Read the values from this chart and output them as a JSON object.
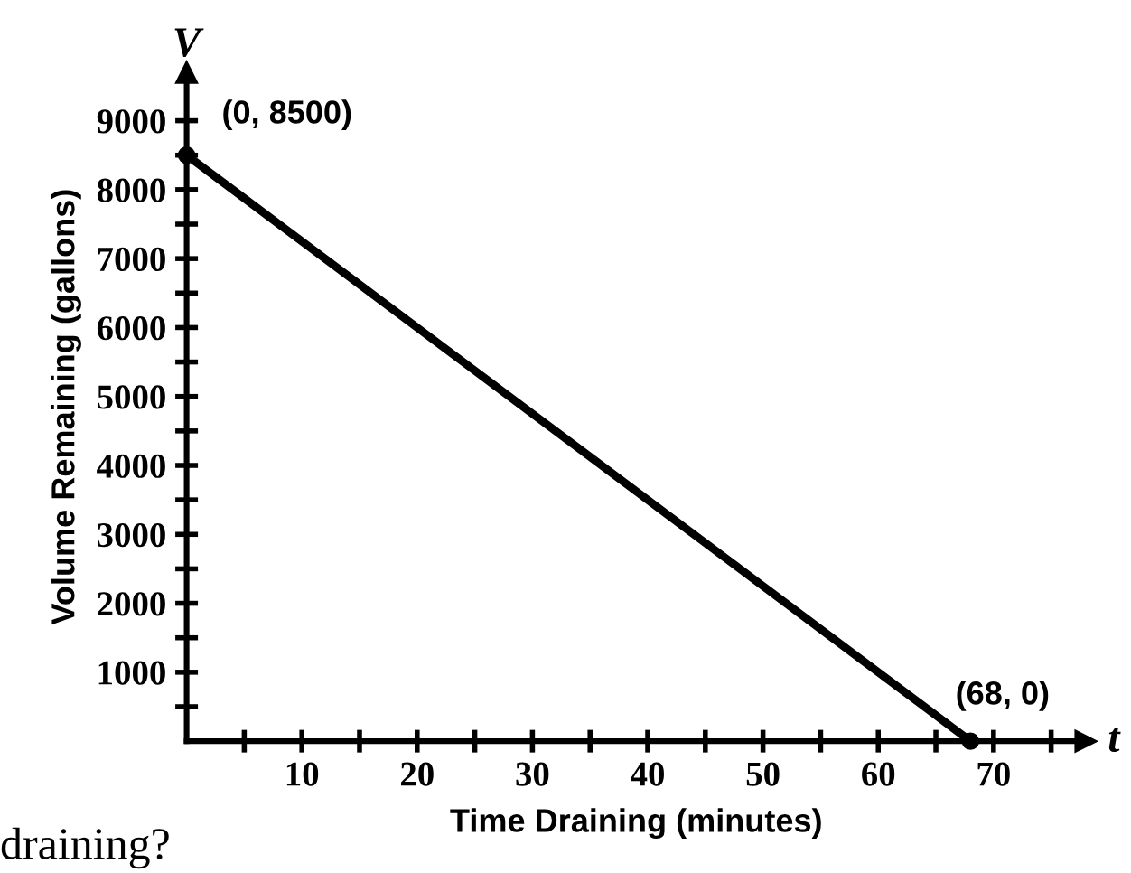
{
  "chart_data": {
    "type": "line",
    "xlabel": "Time Draining (minutes)",
    "ylabel": "Volume Remaining (gallons)",
    "x": [
      0,
      68
    ],
    "series": [
      {
        "color": "#000000",
        "values": [
          8500,
          0
        ]
      }
    ],
    "marker": "circle",
    "line_style": "solid",
    "grid": false,
    "xlim": [
      0,
      78
    ],
    "ylim": [
      0,
      9700
    ],
    "xticks": [
      {
        "value": 5,
        "label": null
      },
      10,
      {
        "value": 15,
        "label": null
      },
      20,
      {
        "value": 25,
        "label": null
      },
      30,
      {
        "value": 35,
        "label": null
      },
      40,
      {
        "value": 45,
        "label": null
      },
      50,
      {
        "value": 55,
        "label": null
      },
      60,
      {
        "value": 65,
        "label": null
      },
      70,
      {
        "value": 75,
        "label": null
      }
    ],
    "yticks": [
      {
        "value": 500,
        "label": null
      },
      1000,
      {
        "value": 1500,
        "label": null
      },
      2000,
      {
        "value": 2500,
        "label": null
      },
      3000,
      {
        "value": 3500,
        "label": null
      },
      4000,
      {
        "value": 4500,
        "label": null
      },
      5000,
      {
        "value": 5500,
        "label": null
      },
      6000,
      {
        "value": 6500,
        "label": null
      },
      7000,
      {
        "value": 7500,
        "label": null
      },
      8000,
      {
        "value": 8500,
        "label": null
      },
      9000
    ],
    "annotations": [
      {
        "text": "(0, 8500)",
        "x": 0,
        "y": 8500
      },
      {
        "text": "(68, 0)",
        "x": 68,
        "y": 0
      },
      "V",
      "t",
      "draining?"
    ]
  }
}
